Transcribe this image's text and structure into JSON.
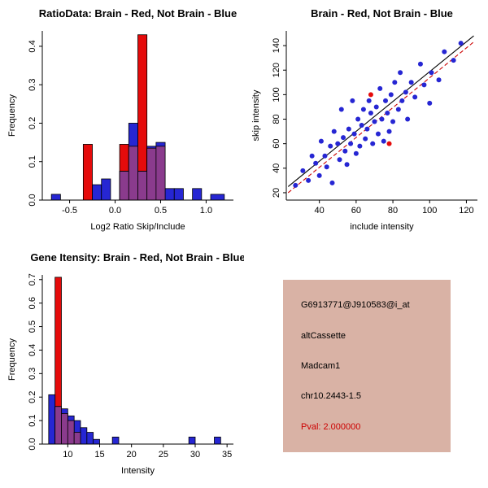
{
  "figure": {
    "bg": "#ffffff",
    "colors": {
      "red": "#e50b0b",
      "blue": "#2626d3",
      "overlap": "#8a3b8d",
      "line_black": "#000000",
      "line_red_dashed": "#cc0000",
      "axis": "#000000"
    }
  },
  "chart_data": [
    {
      "type": "bar",
      "id": "ratio-histogram",
      "title": "RatioData: Brain - Red, Not Brain - Blue",
      "xlabel": "Log2 Ratio Skip/Include",
      "ylabel": "Frequency",
      "xlim": [
        -0.8,
        1.3
      ],
      "ylim": [
        0,
        0.44
      ],
      "xticks": [
        -0.5,
        0,
        0.5,
        1
      ],
      "xtick_labels": [
        "-0.5",
        "0.0",
        "0.5",
        "1.0"
      ],
      "yticks": [
        0,
        0.1,
        0.2,
        0.3,
        0.4
      ],
      "ytick_labels": [
        "0.0",
        "0.1",
        "0.2",
        "0.3",
        "0.4"
      ],
      "series": [
        {
          "name": "Brain",
          "color_key": "red",
          "bins": [
            [
              -0.35,
              -0.25,
              0.145
            ],
            [
              0.05,
              0.15,
              0.145
            ],
            [
              0.15,
              0.25,
              0.14
            ],
            [
              0.25,
              0.35,
              0.43
            ],
            [
              0.35,
              0.45,
              0.135
            ],
            [
              0.45,
              0.55,
              0.14
            ]
          ]
        },
        {
          "name": "Not Brain",
          "color_key": "blue",
          "bins": [
            [
              -0.7,
              -0.6,
              0.015
            ],
            [
              -0.25,
              -0.15,
              0.04
            ],
            [
              -0.15,
              -0.05,
              0.055
            ],
            [
              0.05,
              0.15,
              0.075
            ],
            [
              0.15,
              0.25,
              0.2
            ],
            [
              0.25,
              0.35,
              0.075
            ],
            [
              0.35,
              0.45,
              0.14
            ],
            [
              0.45,
              0.55,
              0.15
            ],
            [
              0.55,
              0.65,
              0.03
            ],
            [
              0.65,
              0.75,
              0.03
            ],
            [
              0.85,
              0.95,
              0.03
            ],
            [
              1.05,
              1.2,
              0.015
            ]
          ]
        }
      ]
    },
    {
      "type": "scatter",
      "id": "intensity-scatter",
      "title": "Brain - Red, Not Brain - Blue",
      "xlabel": "include intensity",
      "ylabel": "skip intensity",
      "xlim": [
        22,
        126
      ],
      "ylim": [
        14,
        152
      ],
      "xticks": [
        40,
        60,
        80,
        100,
        120
      ],
      "xtick_labels": [
        "40",
        "60",
        "80",
        "100",
        "120"
      ],
      "yticks": [
        20,
        40,
        60,
        80,
        100,
        120,
        140
      ],
      "ytick_labels": [
        "20",
        "40",
        "60",
        "80",
        "100",
        "120",
        "140"
      ],
      "series": [
        {
          "name": "Not Brain",
          "color_key": "blue",
          "points": [
            [
              27,
              26
            ],
            [
              31,
              38
            ],
            [
              34,
              30
            ],
            [
              36,
              50
            ],
            [
              38,
              44
            ],
            [
              40,
              34
            ],
            [
              41,
              62
            ],
            [
              43,
              50
            ],
            [
              44,
              41
            ],
            [
              46,
              58
            ],
            [
              47,
              28
            ],
            [
              48,
              70
            ],
            [
              50,
              60
            ],
            [
              51,
              47
            ],
            [
              52,
              88
            ],
            [
              53,
              65
            ],
            [
              54,
              54
            ],
            [
              55,
              43
            ],
            [
              56,
              72
            ],
            [
              57,
              60
            ],
            [
              58,
              95
            ],
            [
              59,
              68
            ],
            [
              60,
              52
            ],
            [
              61,
              80
            ],
            [
              62,
              58
            ],
            [
              63,
              75
            ],
            [
              64,
              88
            ],
            [
              65,
              64
            ],
            [
              66,
              72
            ],
            [
              67,
              95
            ],
            [
              68,
              85
            ],
            [
              69,
              60
            ],
            [
              70,
              78
            ],
            [
              71,
              90
            ],
            [
              72,
              68
            ],
            [
              73,
              105
            ],
            [
              74,
              80
            ],
            [
              75,
              62
            ],
            [
              76,
              95
            ],
            [
              77,
              85
            ],
            [
              78,
              70
            ],
            [
              79,
              100
            ],
            [
              80,
              78
            ],
            [
              81,
              110
            ],
            [
              83,
              88
            ],
            [
              84,
              118
            ],
            [
              85,
              95
            ],
            [
              87,
              102
            ],
            [
              88,
              80
            ],
            [
              90,
              110
            ],
            [
              92,
              98
            ],
            [
              95,
              125
            ],
            [
              97,
              108
            ],
            [
              100,
              93
            ],
            [
              101,
              118
            ],
            [
              105,
              112
            ],
            [
              108,
              135
            ],
            [
              113,
              128
            ],
            [
              117,
              142
            ]
          ]
        },
        {
          "name": "Brain",
          "color_key": "red",
          "points": [
            [
              68,
              100
            ],
            [
              78,
              60
            ]
          ]
        }
      ],
      "lines": [
        {
          "style": "solid",
          "color_key": "line_black",
          "x1": 23,
          "y1": 25,
          "x2": 124,
          "y2": 148
        },
        {
          "style": "dashed",
          "color_key": "line_red_dashed",
          "x1": 23,
          "y1": 20,
          "x2": 124,
          "y2": 143
        }
      ]
    },
    {
      "type": "bar",
      "id": "gene-intensity-histogram",
      "title": "Gene Itensity: Brain - Red, Not Brain - Blue",
      "xlabel": "Intensity",
      "ylabel": "Frequency",
      "xlim": [
        6,
        36
      ],
      "ylim": [
        0,
        0.72
      ],
      "xticks": [
        10,
        15,
        20,
        25,
        30,
        35
      ],
      "xtick_labels": [
        "10",
        "15",
        "20",
        "25",
        "30",
        "35"
      ],
      "yticks": [
        0,
        0.1,
        0.2,
        0.3,
        0.4,
        0.5,
        0.6,
        0.7
      ],
      "ytick_labels": [
        "0.0",
        "0.1",
        "0.2",
        "0.3",
        "0.4",
        "0.5",
        "0.6",
        "0.7"
      ],
      "series": [
        {
          "name": "Brain",
          "color_key": "red",
          "bins": [
            [
              8,
              9,
              0.71
            ],
            [
              9,
              10,
              0.13
            ],
            [
              10,
              11,
              0.1
            ],
            [
              11,
              12,
              0.05
            ]
          ]
        },
        {
          "name": "Not Brain",
          "color_key": "blue",
          "bins": [
            [
              7,
              8,
              0.21
            ],
            [
              8,
              9,
              0.16
            ],
            [
              9,
              10,
              0.15
            ],
            [
              10,
              11,
              0.12
            ],
            [
              11,
              12,
              0.1
            ],
            [
              12,
              13,
              0.07
            ],
            [
              13,
              14,
              0.05
            ],
            [
              14,
              15,
              0.02
            ],
            [
              17,
              18,
              0.03
            ],
            [
              29,
              30,
              0.03
            ],
            [
              33,
              34,
              0.03
            ]
          ]
        }
      ]
    }
  ],
  "info_panel": {
    "bg": "#d9b2a5",
    "lines": [
      {
        "text": "G6913771@J910583@i_at",
        "color": "#000000"
      },
      {
        "text": "altCassette",
        "color": "#000000"
      },
      {
        "text": "Madcam1",
        "color": "#000000"
      },
      {
        "text": "chr10.2443-1.5",
        "color": "#000000"
      },
      {
        "text": "Pval: 2.000000",
        "color": "#cc0000"
      }
    ]
  }
}
